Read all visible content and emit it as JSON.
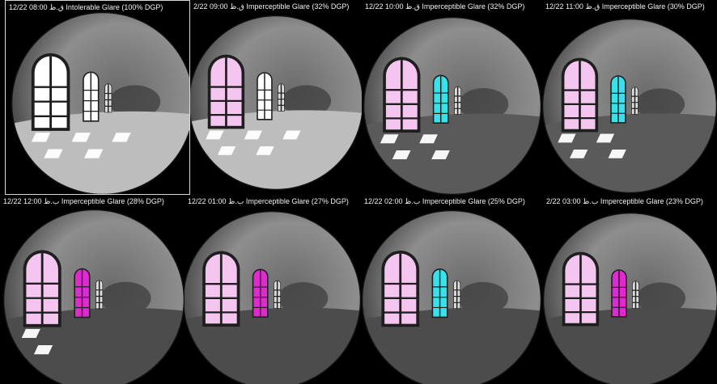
{
  "panels": [
    {
      "caption": "12/22  08:00 ق.ظ  Intolerable Glare (100% DGP)",
      "glare_pct": 100,
      "glass": "clear",
      "sun": "strong"
    },
    {
      "caption": "2/22  09:00 ق.ظ  Imperceptible Glare (32% DGP)",
      "glare_pct": 32,
      "glass": "pink-left",
      "sun": "strong"
    },
    {
      "caption": "12/22  10:00 ق.ظ  Imperceptible Glare (32% DGP)",
      "glare_pct": 32,
      "glass": "pink-cyan",
      "sun": "medium"
    },
    {
      "caption": "12/22  11:00 ق.ظ  Imperceptible Glare (30% DGP)",
      "glare_pct": 30,
      "glass": "pink-cyan",
      "sun": "medium"
    },
    {
      "caption": "12/22  12:00 ب.ظ  Imperceptible Glare (28% DGP)",
      "glare_pct": 28,
      "glass": "pink-magenta",
      "sun": "low"
    },
    {
      "caption": "12/22  01:00 ب.ظ  Imperceptible Glare (27% DGP)",
      "glare_pct": 27,
      "glass": "pink-magenta",
      "sun": "none"
    },
    {
      "caption": "12/22  02:00 ب.ظ  Imperceptible Glare (25% DGP)",
      "glare_pct": 25,
      "glass": "pink-cyan",
      "sun": "none"
    },
    {
      "caption": "2/22  03:00 ب.ظ  Imperceptible Glare (23% DGP)",
      "glare_pct": 23,
      "glass": "pink-magenta",
      "sun": "none"
    }
  ],
  "colors": {
    "pink": "#f4c6ef",
    "magenta": "#e02ad0",
    "cyan": "#38e2ea",
    "clear": "#ffffff"
  }
}
